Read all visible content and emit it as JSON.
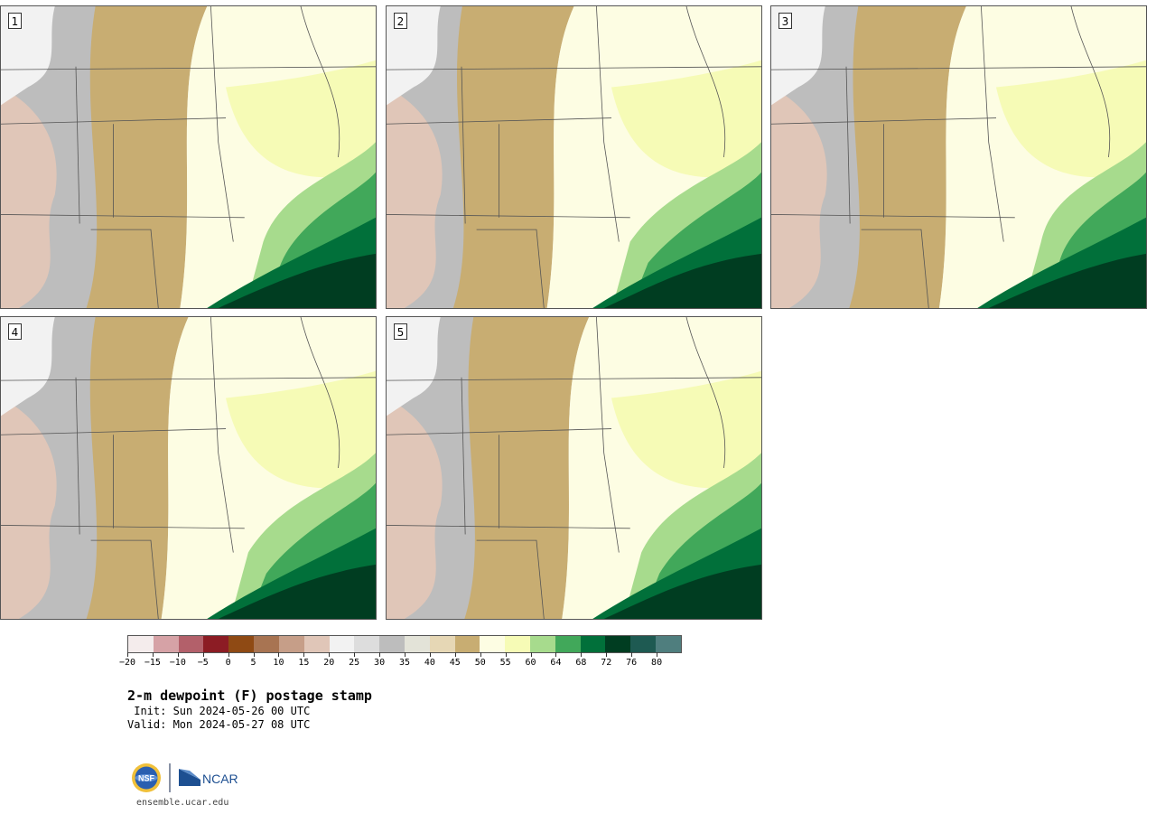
{
  "colors": {
    "terrain_base": "#c9c9c9",
    "state_lines": "#555555",
    "scale": [
      "#f4ecec",
      "#d6a2a6",
      "#b3606a",
      "#8c1c24",
      "#8f4a14",
      "#a87452",
      "#c69e88",
      "#e0c6b8",
      "#f2f2f2",
      "#dddddd",
      "#bdbdbd",
      "#e3e3d8",
      "#e6d7b5",
      "#c8ad72",
      "#fdfde3",
      "#f6fbb6",
      "#a7db8d",
      "#41a85a",
      "#01703a",
      "#003d21",
      "#1e5a52",
      "#4f7e7e"
    ]
  },
  "panels": [
    {
      "label": "1",
      "tone": [
        0.3,
        0.55,
        0.7,
        0.85
      ]
    },
    {
      "label": "2",
      "tone": [
        0.25,
        0.5,
        0.65,
        0.82
      ]
    },
    {
      "label": "3",
      "tone": [
        0.28,
        0.52,
        0.72,
        0.86
      ]
    },
    {
      "label": "4",
      "tone": [
        0.3,
        0.5,
        0.66,
        0.84
      ]
    },
    {
      "label": "5",
      "tone": [
        0.28,
        0.54,
        0.68,
        0.83
      ]
    }
  ],
  "colorbar": {
    "tick_labels": [
      "−20",
      "−15",
      "−10",
      "−5",
      "0",
      "5",
      "10",
      "15",
      "20",
      "25",
      "30",
      "35",
      "40",
      "45",
      "50",
      "55",
      "60",
      "64",
      "68",
      "72",
      "76",
      "80"
    ]
  },
  "title": "2-m dewpoint (F) postage stamp",
  "init": " Init: Sun 2024-05-26 00 UTC",
  "valid": "Valid: Mon 2024-05-27 08 UTC",
  "logos": {
    "nsf": "NSF",
    "ncar": "NCAR"
  },
  "site": "ensemble.ucar.edu"
}
